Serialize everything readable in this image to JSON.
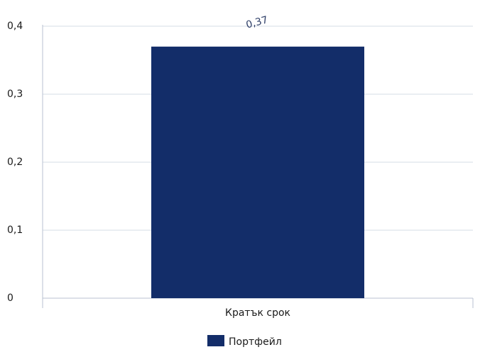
{
  "chart_data": {
    "type": "bar",
    "categories": [
      "Кратък срок"
    ],
    "series": [
      {
        "name": "Портфейл",
        "values": [
          0.37
        ],
        "color": "#132d69"
      }
    ],
    "data_labels": [
      "0,37"
    ],
    "y_ticks": [
      {
        "value": 0,
        "label": "0"
      },
      {
        "value": 0.1,
        "label": "0,1"
      },
      {
        "value": 0.2,
        "label": "0,2"
      },
      {
        "value": 0.3,
        "label": "0,3"
      },
      {
        "value": 0.4,
        "label": "0,4"
      }
    ],
    "ylim": [
      0,
      0.4
    ],
    "grid": true,
    "legend_position": "bottom",
    "colors": {
      "grid": "#d6dce6",
      "axis": "#b8c2d1",
      "text": "#1a1a1a",
      "label": "#2f3f68"
    }
  }
}
